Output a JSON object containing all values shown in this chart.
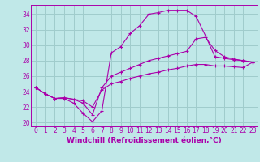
{
  "title": "",
  "xlabel": "Windchill (Refroidissement éolien,°C)",
  "bg_color": "#c0e8e8",
  "grid_color": "#a0cccc",
  "line_color": "#aa00aa",
  "xlim": [
    -0.5,
    23.5
  ],
  "ylim": [
    19.5,
    35.2
  ],
  "xticks": [
    0,
    1,
    2,
    3,
    4,
    5,
    6,
    7,
    8,
    9,
    10,
    11,
    12,
    13,
    14,
    15,
    16,
    17,
    18,
    19,
    20,
    21,
    22,
    23
  ],
  "yticks": [
    20,
    22,
    24,
    26,
    28,
    30,
    32,
    34
  ],
  "line1_x": [
    0,
    1,
    2,
    3,
    4,
    5,
    6,
    7,
    8,
    9,
    10,
    11,
    12,
    13,
    14,
    15,
    16,
    17,
    18,
    19,
    20,
    21,
    22,
    23
  ],
  "line1_y": [
    24.5,
    23.7,
    23.1,
    23.1,
    22.5,
    21.2,
    20.1,
    21.5,
    29.0,
    29.8,
    31.5,
    32.5,
    34.0,
    34.2,
    34.5,
    34.5,
    34.5,
    33.7,
    31.2,
    28.5,
    28.3,
    28.1,
    28.0,
    27.8
  ],
  "line2_x": [
    0,
    1,
    2,
    3,
    4,
    5,
    6,
    7,
    8,
    9,
    10,
    11,
    12,
    13,
    14,
    15,
    16,
    17,
    18,
    19,
    20,
    21,
    22,
    23
  ],
  "line2_y": [
    24.5,
    23.7,
    23.1,
    23.2,
    23.0,
    22.5,
    21.0,
    24.5,
    26.0,
    26.5,
    27.0,
    27.5,
    28.0,
    28.3,
    28.6,
    28.9,
    29.2,
    30.8,
    31.0,
    29.3,
    28.5,
    28.2,
    28.0,
    27.8
  ],
  "line3_x": [
    0,
    1,
    2,
    3,
    4,
    5,
    6,
    7,
    8,
    9,
    10,
    11,
    12,
    13,
    14,
    15,
    16,
    17,
    18,
    19,
    20,
    21,
    22,
    23
  ],
  "line3_y": [
    24.5,
    23.7,
    23.1,
    23.2,
    23.0,
    22.8,
    22.0,
    24.2,
    25.0,
    25.3,
    25.7,
    26.0,
    26.3,
    26.5,
    26.8,
    27.0,
    27.3,
    27.5,
    27.5,
    27.3,
    27.3,
    27.2,
    27.1,
    27.8
  ],
  "xlabel_fontsize": 6.5,
  "tick_fontsize": 5.5
}
